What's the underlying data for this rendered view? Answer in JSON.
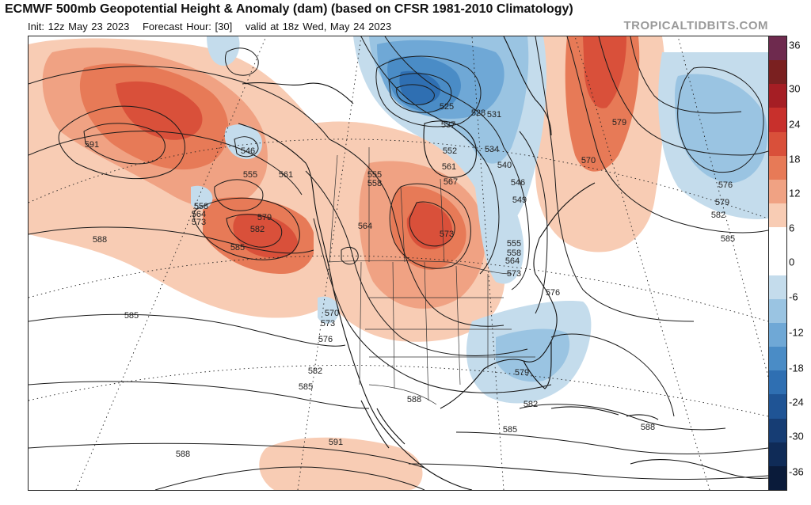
{
  "header": {
    "title": "ECMWF 500mb Geopotential Height & Anomaly (dam) (based on CFSR 1981-2010 Climatology)",
    "init": "Init: 12z May 23 2023",
    "forecast_hour": "Forecast Hour: [30]",
    "valid": "valid at 18z Wed, May 24 2023",
    "brand": "TROPICALTIDBITS.COM"
  },
  "colorbar": {
    "ticks": [
      "36",
      "30",
      "24",
      "18",
      "12",
      "6",
      "0",
      "-6",
      "-12",
      "-18",
      "-24",
      "-30",
      "-36"
    ],
    "colors": [
      "#6e2a4e",
      "#7a2020",
      "#a51e24",
      "#c8302c",
      "#d9503a",
      "#e77a57",
      "#f0a283",
      "#f8ccb4",
      "#ffffff",
      "#ffffff",
      "#c4dcec",
      "#9ac4e2",
      "#6fa8d6",
      "#4a8cc6",
      "#2f6fb2",
      "#1f5495",
      "#163d74",
      "#0f2b57",
      "#0a1b3a"
    ],
    "units": "dam anomaly"
  },
  "contour_labels": [
    {
      "text": "591"
    },
    {
      "text": "546"
    },
    {
      "text": "555"
    },
    {
      "text": "561"
    },
    {
      "text": "558"
    },
    {
      "text": "564"
    },
    {
      "text": "573"
    },
    {
      "text": "579"
    },
    {
      "text": "582"
    },
    {
      "text": "585"
    },
    {
      "text": "588"
    },
    {
      "text": "585"
    },
    {
      "text": "564"
    },
    {
      "text": "570"
    },
    {
      "text": "573"
    },
    {
      "text": "576"
    },
    {
      "text": "582"
    },
    {
      "text": "585"
    },
    {
      "text": "588"
    },
    {
      "text": "591"
    },
    {
      "text": "588"
    },
    {
      "text": "555"
    },
    {
      "text": "558"
    },
    {
      "text": "561"
    },
    {
      "text": "567"
    },
    {
      "text": "573"
    },
    {
      "text": "552"
    },
    {
      "text": "537"
    },
    {
      "text": "525"
    },
    {
      "text": "528"
    },
    {
      "text": "531"
    },
    {
      "text": "534"
    },
    {
      "text": "540"
    },
    {
      "text": "546"
    },
    {
      "text": "549"
    },
    {
      "text": "555"
    },
    {
      "text": "558"
    },
    {
      "text": "564"
    },
    {
      "text": "573"
    },
    {
      "text": "576"
    },
    {
      "text": "579"
    },
    {
      "text": "582"
    },
    {
      "text": "585"
    },
    {
      "text": "588"
    },
    {
      "text": "579"
    },
    {
      "text": "570"
    },
    {
      "text": "576"
    },
    {
      "text": "579"
    },
    {
      "text": "582"
    },
    {
      "text": "585"
    }
  ]
}
